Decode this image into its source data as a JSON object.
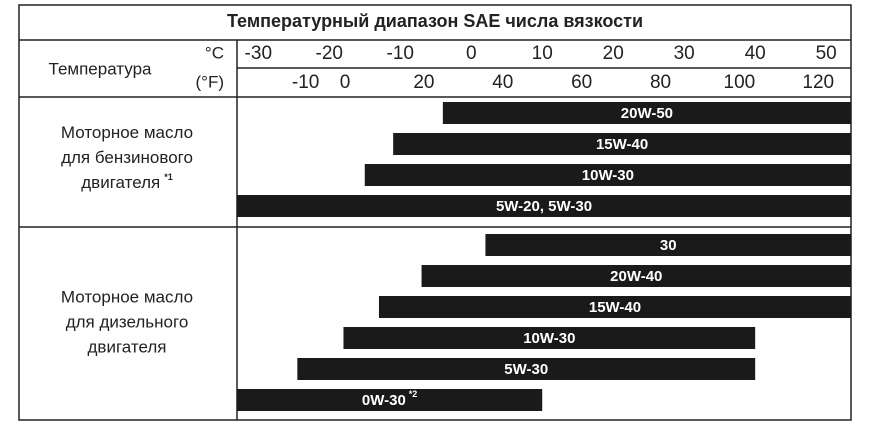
{
  "chart_data": {
    "type": "range-bar",
    "title": "Температурный диапазон SAE числа вязкости",
    "axis_label": "Температура",
    "x_unit": "°C",
    "x2_unit": "(°F)",
    "xlim": [
      -33,
      53.5
    ],
    "xticks": [
      -30,
      -20,
      -10,
      0,
      10,
      20,
      30,
      40,
      50
    ],
    "x2lim": [
      -27.4,
      128.3
    ],
    "x2ticks": [
      -10,
      0,
      20,
      40,
      60,
      80,
      100,
      120
    ],
    "color": "#1a1a1a",
    "groups": [
      {
        "lines": [
          "Моторное масло",
          "для бензинового",
          "двигателя"
        ],
        "note": "*1",
        "bars": [
          {
            "name": "20W-50",
            "values": [
              -4,
              53.5
            ]
          },
          {
            "name": "15W-40",
            "values": [
              -11,
              53.5
            ]
          },
          {
            "name": "10W-30",
            "values": [
              -15,
              53.5
            ]
          },
          {
            "name": "5W-20, 5W-30",
            "values": [
              -33,
              53.5
            ]
          }
        ]
      },
      {
        "lines": [
          "Моторное масло",
          "для дизельного",
          "двигателя"
        ],
        "bars": [
          {
            "name": "30",
            "values": [
              2,
              53.5
            ]
          },
          {
            "name": "20W-40",
            "values": [
              -7,
              53.5
            ]
          },
          {
            "name": "15W-40",
            "values": [
              -13,
              53.5
            ]
          },
          {
            "name": "10W-30",
            "values": [
              -18,
              40
            ]
          },
          {
            "name": "5W-30",
            "values": [
              -24.5,
              40
            ]
          },
          {
            "name": "0W-30",
            "note": "*2",
            "values": [
              -33,
              10
            ]
          }
        ]
      }
    ]
  }
}
